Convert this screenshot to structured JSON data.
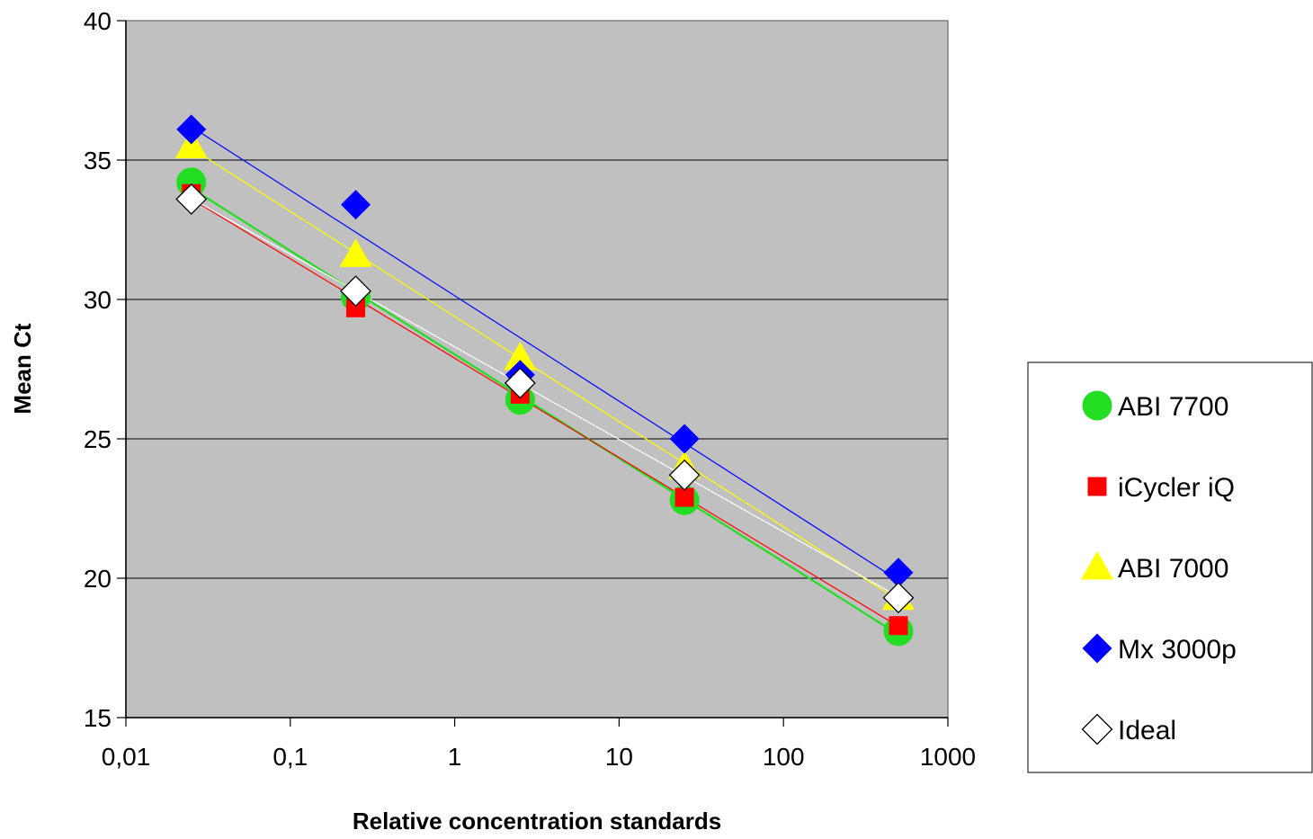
{
  "chart_data": {
    "type": "scatter",
    "title": "",
    "xlabel": "Relative concentration standards",
    "ylabel": "Mean Ct",
    "x_scale": "log",
    "xlim": [
      0.01,
      1000
    ],
    "ylim": [
      15,
      40
    ],
    "x_ticks": [
      0.01,
      0.1,
      1,
      10,
      100,
      1000
    ],
    "x_tick_labels": [
      "0,01",
      "0,1",
      "1",
      "10",
      "100",
      "1000"
    ],
    "y_ticks": [
      15,
      20,
      25,
      30,
      35,
      40
    ],
    "y_tick_labels": [
      "15",
      "20",
      "25",
      "30",
      "35",
      "40"
    ],
    "grid": "horizontal",
    "plot_background": "#c0c0c0",
    "legend_position": "right",
    "x": [
      0.025,
      0.25,
      2.5,
      25,
      500
    ],
    "series": [
      {
        "name": "ABI 7700",
        "marker": "circle",
        "color": "#22dd22",
        "values": [
          34.2,
          30.1,
          26.4,
          22.8,
          18.1
        ]
      },
      {
        "name": "iCycler iQ",
        "marker": "square",
        "color": "#ff0000",
        "values": [
          33.8,
          29.7,
          26.6,
          22.9,
          18.3
        ]
      },
      {
        "name": "ABI 7000",
        "marker": "triangle",
        "color": "#ffff00",
        "values": [
          35.5,
          31.6,
          27.9,
          24.0,
          19.3
        ]
      },
      {
        "name": "Mx 3000p",
        "marker": "diamond",
        "color": "#0000ff",
        "values": [
          36.1,
          33.4,
          27.3,
          25.0,
          20.2
        ]
      },
      {
        "name": "Ideal",
        "marker": "open-diamond",
        "color": "#ffffff",
        "values": [
          33.6,
          30.3,
          27.0,
          23.7,
          19.3
        ]
      }
    ]
  }
}
